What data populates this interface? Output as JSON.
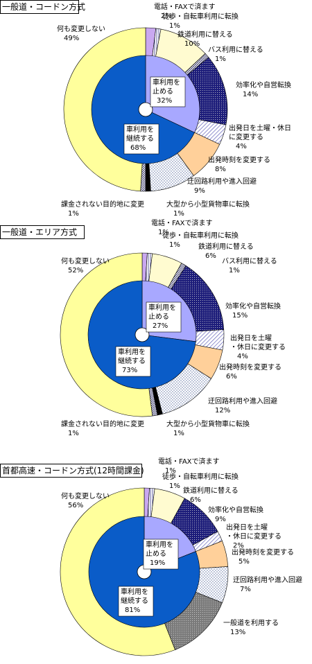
{
  "chart_data": [
    {
      "type": "pie",
      "title": "一般道・コードン方式",
      "outer": [
        {
          "label": "電話・FAXで済ます",
          "value": 2,
          "color": "#c9a8f0",
          "pattern": "solid"
        },
        {
          "label": "徒歩・自転車利用に転換",
          "value": 1,
          "color": "#ffffff",
          "pattern": "vlines"
        },
        {
          "label": "鉄道利用に替える",
          "value": 10,
          "color": "#fffbd0",
          "pattern": "solid"
        },
        {
          "label": "バス利用に替える",
          "value": 1,
          "color": "#ffffff",
          "pattern": "hatch"
        },
        {
          "label": "効率化や自営転換",
          "value": 14,
          "color": "#1c1c7a",
          "pattern": "dots-dark"
        },
        {
          "label": "出発日を土曜・休日に変更する",
          "value": 4,
          "color": "#ffffff",
          "pattern": "diag"
        },
        {
          "label": "出発時刻を変更する",
          "value": 8,
          "color": "#ffd09a",
          "pattern": "solid"
        },
        {
          "label": "迂回路利用や進入回避",
          "value": 9,
          "color": "#ffffff",
          "pattern": "dots-light"
        },
        {
          "label": "大型から小型貨物車に転換",
          "value": 1,
          "color": "#000000",
          "pattern": "solid"
        },
        {
          "label": "課金されない目的地に変更",
          "value": 1,
          "color": "#ffffff",
          "pattern": "hatch"
        },
        {
          "label": "何も変更しない",
          "value": 49,
          "color": "#ffff9c",
          "pattern": "solid"
        }
      ],
      "inner": [
        {
          "label": "車利用を止める",
          "value": 32,
          "color": "#a8a8ff"
        },
        {
          "label": "車利用を継続する",
          "value": 68,
          "color": "#0a5cc8"
        }
      ]
    },
    {
      "type": "pie",
      "title": "一般道・エリア方式",
      "outer": [
        {
          "label": "電話・FAXで済ます",
          "value": 1,
          "color": "#c9a8f0",
          "pattern": "solid"
        },
        {
          "label": "徒歩・自転車利用に転換",
          "value": 1,
          "color": "#ffffff",
          "pattern": "vlines"
        },
        {
          "label": "鉄道利用に替える",
          "value": 6,
          "color": "#fffbd0",
          "pattern": "solid"
        },
        {
          "label": "バス利用に替える",
          "value": 1,
          "color": "#ffffff",
          "pattern": "hatch"
        },
        {
          "label": "効率化や自営転換",
          "value": 15,
          "color": "#1c1c7a",
          "pattern": "dots-dark"
        },
        {
          "label": "出発日を土曜・休日に変更する",
          "value": 4,
          "color": "#ffffff",
          "pattern": "diag"
        },
        {
          "label": "出発時刻を変更する",
          "value": 6,
          "color": "#ffd09a",
          "pattern": "solid"
        },
        {
          "label": "迂回路利用や進入回避",
          "value": 12,
          "color": "#ffffff",
          "pattern": "dots-light"
        },
        {
          "label": "大型から小型貨物車に転換",
          "value": 1,
          "color": "#000000",
          "pattern": "solid"
        },
        {
          "label": "課金されない目的地に変更",
          "value": 1,
          "color": "#ffffff",
          "pattern": "hatch"
        },
        {
          "label": "何も変更しない",
          "value": 52,
          "color": "#ffff9c",
          "pattern": "solid"
        }
      ],
      "inner": [
        {
          "label": "車利用を止める",
          "value": 27,
          "color": "#a8a8ff"
        },
        {
          "label": "車利用を継続する",
          "value": 73,
          "color": "#0a5cc8"
        }
      ]
    },
    {
      "type": "pie",
      "title": "首都高速・コードン方式(12時間課金)",
      "outer": [
        {
          "label": "電話・FAXで済ます",
          "value": 1,
          "color": "#c9a8f0",
          "pattern": "solid"
        },
        {
          "label": "徒歩・自転車利用に転換",
          "value": 1,
          "color": "#ffffff",
          "pattern": "vlines"
        },
        {
          "label": "鉄道利用に替える",
          "value": 6,
          "color": "#fffbd0",
          "pattern": "solid"
        },
        {
          "label": "効率化や自営転換",
          "value": 9,
          "color": "#1c1c7a",
          "pattern": "dots-dark"
        },
        {
          "label": "出発日を土曜・休日に変更する",
          "value": 2,
          "color": "#ffffff",
          "pattern": "diag"
        },
        {
          "label": "出発時刻を変更する",
          "value": 5,
          "color": "#ffd09a",
          "pattern": "solid"
        },
        {
          "label": "迂回路利用や進入回避",
          "value": 7,
          "color": "#ffffff",
          "pattern": "dots-light"
        },
        {
          "label": "一般道を利用する",
          "value": 13,
          "color": "#7a7a7a",
          "pattern": "dots-dark"
        },
        {
          "label": "何も変更しない",
          "value": 56,
          "color": "#ffff9c",
          "pattern": "solid"
        }
      ],
      "inner": [
        {
          "label": "車利用を止める",
          "value": 19,
          "color": "#a8a8ff"
        },
        {
          "label": "車利用を継続する",
          "value": 81,
          "color": "#0a5cc8"
        }
      ]
    }
  ],
  "labels": [
    [
      {
        "text": "電話・FAXで済ます",
        "pct": "2%"
      },
      {
        "text": "徒歩・自転車利用に転換",
        "pct": "1%"
      },
      {
        "text": "鉄道利用に替える",
        "pct": "10%"
      },
      {
        "text": "バス利用に替える",
        "pct": "1%"
      },
      {
        "text": "効率化や自営転換",
        "pct": "14%"
      },
      {
        "text": "出発日を土曜・休日\nに変更する",
        "pct": "4%"
      },
      {
        "text": "出発時刻を変更する",
        "pct": "8%"
      },
      {
        "text": "迂回路利用や進入回避",
        "pct": "9%"
      },
      {
        "text": "大型から小型貨物車に転換",
        "pct": "1%"
      },
      {
        "text": "課金されない目的地に変更",
        "pct": "1%"
      },
      {
        "text": "何も変更しない",
        "pct": "49%"
      }
    ],
    [
      {
        "text": "電話・FAXで済ます",
        "pct": "1%"
      },
      {
        "text": "徒歩・自転車利用に転換",
        "pct": "1%"
      },
      {
        "text": "鉄道利用に替える",
        "pct": "6%"
      },
      {
        "text": "バス利用に替える",
        "pct": "1%"
      },
      {
        "text": "効率化や自営転換",
        "pct": "15%"
      },
      {
        "text": "出発日を土曜\n・休日に変更する",
        "pct": "4%"
      },
      {
        "text": "出発時刻を変更する",
        "pct": "6%"
      },
      {
        "text": "迂回路利用や進入回避",
        "pct": "12%"
      },
      {
        "text": "大型から小型貨物車に転換",
        "pct": "1%"
      },
      {
        "text": "課金されない目的地に変更",
        "pct": "1%"
      },
      {
        "text": "何も変更しない",
        "pct": "52%"
      }
    ],
    [
      {
        "text": "電話・FAXで済ます",
        "pct": "1%"
      },
      {
        "text": "徒歩・自転車利用に転換",
        "pct": "1%"
      },
      {
        "text": "鉄道利用に替える",
        "pct": "6%"
      },
      {
        "text": "効率化や自営転換",
        "pct": "9%"
      },
      {
        "text": "出発日を土曜\n・休日に変更する",
        "pct": "2%"
      },
      {
        "text": "出発時刻を変更する",
        "pct": "5%"
      },
      {
        "text": "迂回路利用や進入回避",
        "pct": "7%"
      },
      {
        "text": "一般道を利用する",
        "pct": "13%"
      },
      {
        "text": "何も変更しない",
        "pct": "56%"
      }
    ]
  ],
  "inner_labels": [
    [
      {
        "text": "車利用を\n止める",
        "pct": "32%"
      },
      {
        "text": "車利用を\n継続する",
        "pct": "68%"
      }
    ],
    [
      {
        "text": "車利用を\n止める",
        "pct": "27%"
      },
      {
        "text": "車利用を\n継続する",
        "pct": "73%"
      }
    ],
    [
      {
        "text": "車利用を\n止める",
        "pct": "19%"
      },
      {
        "text": "車利用を\n継続する",
        "pct": "81%"
      }
    ]
  ]
}
